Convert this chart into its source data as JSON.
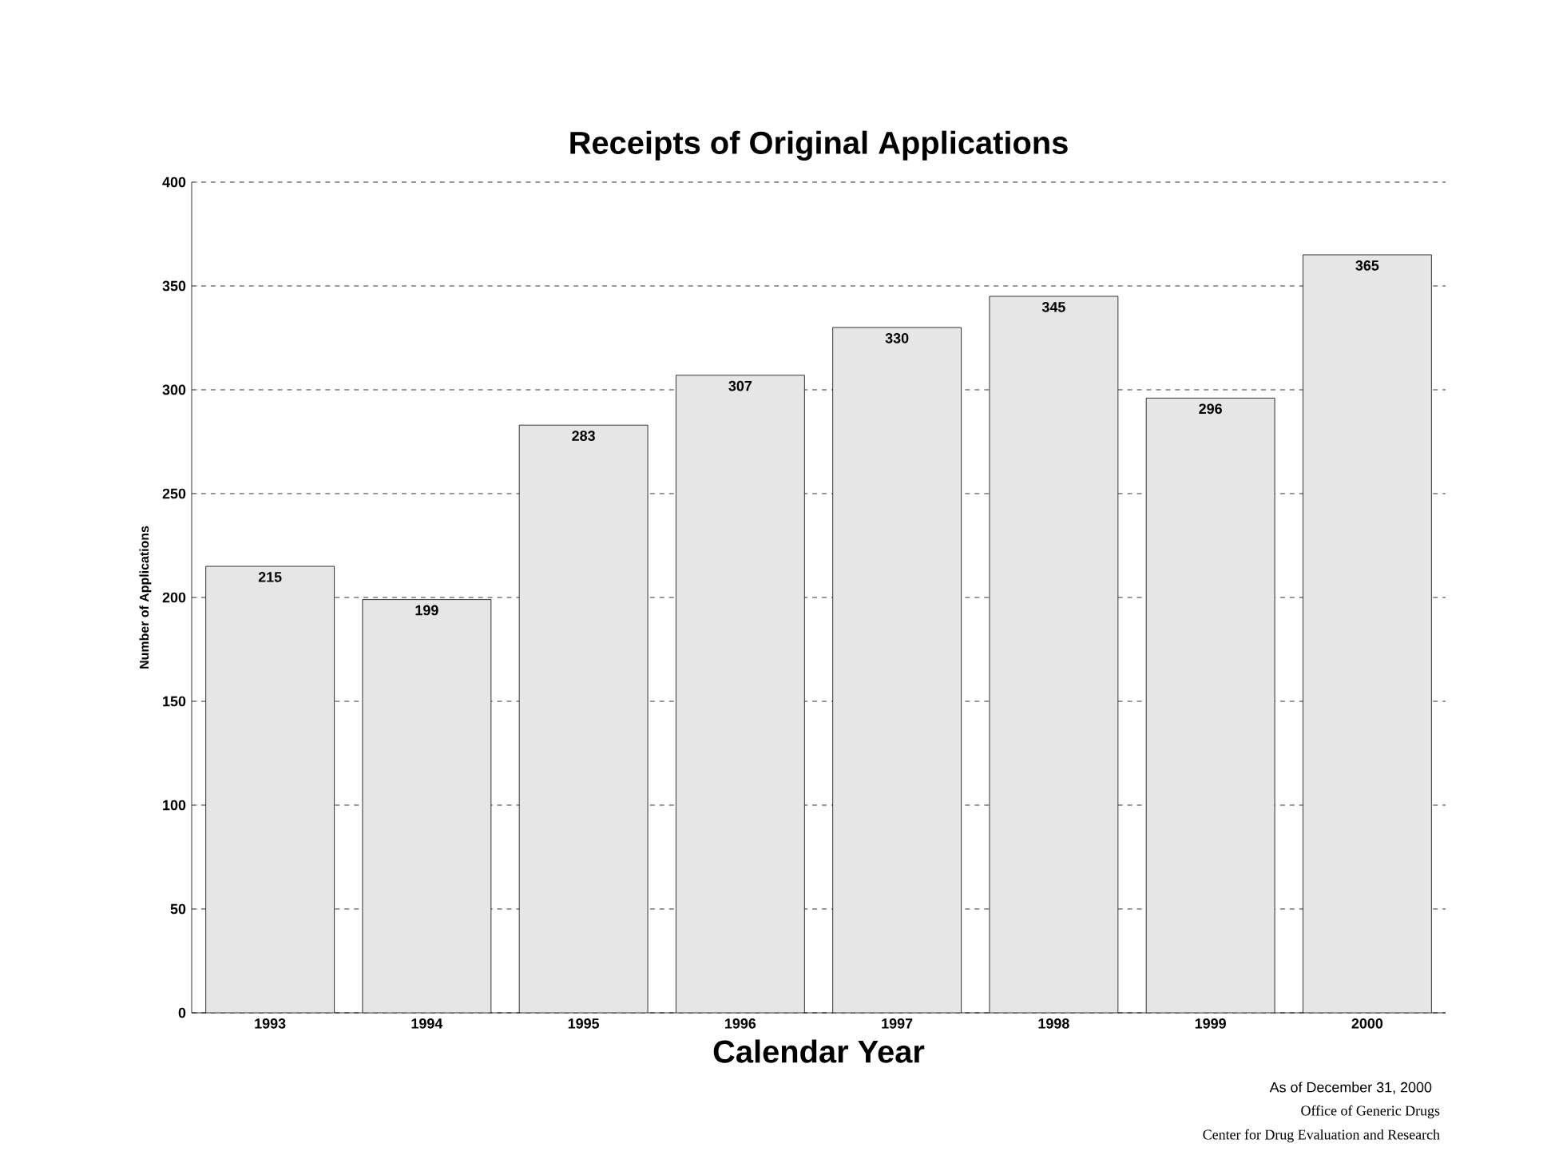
{
  "chart_data": {
    "type": "bar",
    "title": "Receipts of Original Applications",
    "xlabel": "Calendar Year",
    "ylabel": "Number of Applications",
    "categories": [
      "1993",
      "1994",
      "1995",
      "1996",
      "1997",
      "1998",
      "1999",
      "2000"
    ],
    "values": [
      215,
      199,
      283,
      307,
      330,
      345,
      296,
      365
    ],
    "color": "#e6e6e6",
    "ylim": [
      0,
      400
    ],
    "yticks": [
      0,
      50,
      100,
      150,
      200,
      250,
      300,
      350,
      400
    ],
    "grid": "y",
    "data_labels": true,
    "annotations": [
      "As of December 31, 2000",
      "Office of Generic Drugs",
      "Center for Drug Evaluation and Research"
    ]
  }
}
